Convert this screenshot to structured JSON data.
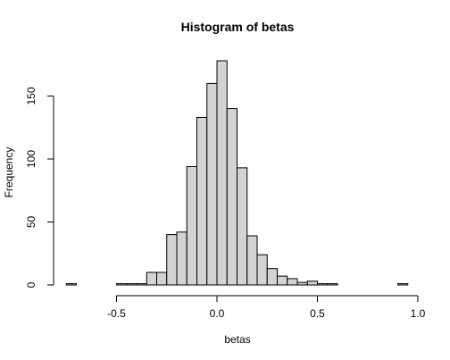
{
  "chart_data": {
    "type": "bar",
    "title": "Histogram of betas",
    "xlabel": "betas",
    "ylabel": "Frequency",
    "bin_width": 0.05,
    "xlim": [
      -0.75,
      0.95
    ],
    "ylim": [
      0,
      180
    ],
    "x_ticks": [
      -0.5,
      0.0,
      0.5,
      1.0
    ],
    "x_tick_labels": [
      "-0.5",
      "0.0",
      "0.5",
      "1.0"
    ],
    "y_ticks": [
      0,
      50,
      100,
      150
    ],
    "y_tick_labels": [
      "0",
      "50",
      "100",
      "150"
    ],
    "bins": [
      {
        "start": -0.75,
        "end": -0.7,
        "count": 1
      },
      {
        "start": -0.7,
        "end": -0.65,
        "count": 0
      },
      {
        "start": -0.65,
        "end": -0.6,
        "count": 0
      },
      {
        "start": -0.6,
        "end": -0.55,
        "count": 0
      },
      {
        "start": -0.55,
        "end": -0.5,
        "count": 0
      },
      {
        "start": -0.5,
        "end": -0.45,
        "count": 1
      },
      {
        "start": -0.45,
        "end": -0.4,
        "count": 1
      },
      {
        "start": -0.4,
        "end": -0.35,
        "count": 1
      },
      {
        "start": -0.35,
        "end": -0.3,
        "count": 10
      },
      {
        "start": -0.3,
        "end": -0.25,
        "count": 10
      },
      {
        "start": -0.25,
        "end": -0.2,
        "count": 40
      },
      {
        "start": -0.2,
        "end": -0.15,
        "count": 42
      },
      {
        "start": -0.15,
        "end": -0.1,
        "count": 94
      },
      {
        "start": -0.1,
        "end": -0.05,
        "count": 133
      },
      {
        "start": -0.05,
        "end": 0.0,
        "count": 160
      },
      {
        "start": 0.0,
        "end": 0.05,
        "count": 178
      },
      {
        "start": 0.05,
        "end": 0.1,
        "count": 140
      },
      {
        "start": 0.1,
        "end": 0.15,
        "count": 93
      },
      {
        "start": 0.15,
        "end": 0.2,
        "count": 39
      },
      {
        "start": 0.2,
        "end": 0.25,
        "count": 24
      },
      {
        "start": 0.25,
        "end": 0.3,
        "count": 13
      },
      {
        "start": 0.3,
        "end": 0.35,
        "count": 7
      },
      {
        "start": 0.35,
        "end": 0.4,
        "count": 5
      },
      {
        "start": 0.4,
        "end": 0.45,
        "count": 2
      },
      {
        "start": 0.45,
        "end": 0.5,
        "count": 3
      },
      {
        "start": 0.5,
        "end": 0.55,
        "count": 1
      },
      {
        "start": 0.55,
        "end": 0.6,
        "count": 1
      },
      {
        "start": 0.6,
        "end": 0.65,
        "count": 0
      },
      {
        "start": 0.65,
        "end": 0.7,
        "count": 0
      },
      {
        "start": 0.7,
        "end": 0.75,
        "count": 0
      },
      {
        "start": 0.75,
        "end": 0.8,
        "count": 0
      },
      {
        "start": 0.8,
        "end": 0.85,
        "count": 0
      },
      {
        "start": 0.85,
        "end": 0.9,
        "count": 0
      },
      {
        "start": 0.9,
        "end": 0.95,
        "count": 1
      }
    ],
    "bar_color": "#d3d3d3",
    "grid": false
  }
}
